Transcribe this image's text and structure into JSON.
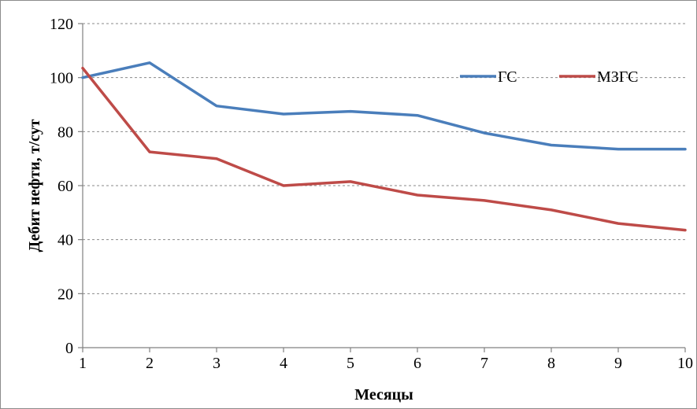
{
  "chart_data": {
    "type": "line",
    "x": [
      1,
      2,
      3,
      4,
      5,
      6,
      7,
      8,
      9,
      10
    ],
    "series": [
      {
        "name": "ГС",
        "color": "#4a7ebb",
        "values": [
          100,
          105.5,
          89.5,
          86.5,
          87.5,
          86,
          79.5,
          75,
          73.5,
          73.5
        ]
      },
      {
        "name": "МЗГС",
        "color": "#be4b48",
        "values": [
          103.5,
          72.5,
          70,
          60,
          61.5,
          56.5,
          54.5,
          51,
          46,
          43.5
        ]
      }
    ],
    "xlabel": "Месяцы",
    "ylabel": "Дебит нефти, т/сут",
    "xlim": [
      1,
      10
    ],
    "ylim": [
      0,
      120
    ],
    "yticks": [
      0,
      20,
      40,
      60,
      80,
      100,
      120
    ],
    "xticks": [
      1,
      2,
      3,
      4,
      5,
      6,
      7,
      8,
      9,
      10
    ],
    "grid": "horizontal dashed",
    "legend_position": "top-right, inside plot"
  }
}
